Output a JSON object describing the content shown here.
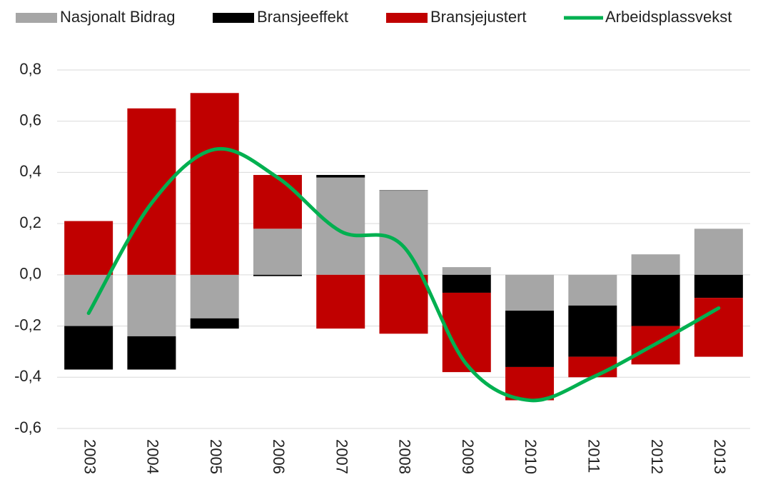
{
  "chart_data": {
    "type": "bar",
    "categories": [
      "2003",
      "2004",
      "2005",
      "2006",
      "2007",
      "2008",
      "2009",
      "2010",
      "2011",
      "2012",
      "2013"
    ],
    "series": [
      {
        "name": "Nasjonalt Bidrag",
        "color": "#a6a6a6",
        "values": [
          -0.2,
          -0.24,
          -0.17,
          0.18,
          0.38,
          0.33,
          0.03,
          -0.14,
          -0.12,
          0.08,
          0.18
        ]
      },
      {
        "name": "Bransjeeffekt",
        "color": "#000000",
        "values": [
          -0.17,
          -0.13,
          -0.04,
          -0.005,
          0.01,
          0,
          -0.07,
          -0.22,
          -0.2,
          -0.2,
          -0.09
        ]
      },
      {
        "name": "Bransjejustert",
        "color": "#c00000",
        "values": [
          0.21,
          0.65,
          0.71,
          0.21,
          -0.21,
          -0.23,
          -0.31,
          -0.13,
          -0.08,
          -0.15,
          -0.23
        ]
      },
      {
        "name": "Arbeidsplassvekst",
        "type": "line",
        "color": "#00b050",
        "values": [
          -0.15,
          0.28,
          0.49,
          0.38,
          0.17,
          0.11,
          -0.35,
          -0.49,
          -0.4,
          -0.27,
          -0.13
        ]
      }
    ],
    "ylim": [
      -0.6,
      0.8
    ],
    "yticks": [
      {
        "value": -0.6,
        "label": "-0,6"
      },
      {
        "value": -0.4,
        "label": "-0,4"
      },
      {
        "value": -0.2,
        "label": "-0,2"
      },
      {
        "value": 0,
        "label": "0,0"
      },
      {
        "value": 0.2,
        "label": "0,2"
      },
      {
        "value": 0.4,
        "label": "0,4"
      },
      {
        "value": 0.6,
        "label": "0,6"
      },
      {
        "value": 0.8,
        "label": "0,8"
      }
    ],
    "grid": true,
    "legend": "top"
  }
}
